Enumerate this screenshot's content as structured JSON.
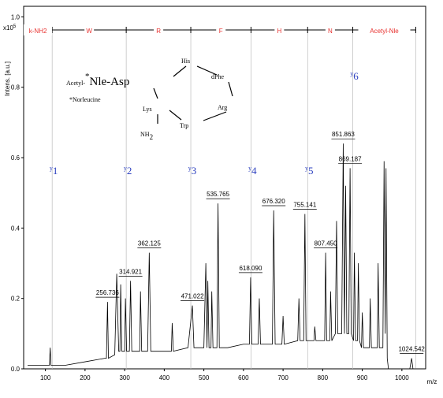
{
  "chart_data": {
    "type": "line",
    "y_axis_label": "Intens. [a.u.]",
    "y_multiplier": "x10",
    "y_multiplier_exp": "5",
    "x_axis_label": "m/z",
    "xlim": [
      45,
      1060
    ],
    "ylim": [
      0,
      1.03
    ],
    "xticks": [
      100,
      200,
      300,
      400,
      500,
      600,
      700,
      800,
      900,
      1000
    ],
    "yticks": [
      {
        "value": 0,
        "label": "0.0"
      },
      0.2,
      0.4,
      0.6,
      0.8,
      {
        "value": 1,
        "label": "1.0"
      }
    ],
    "x": [
      55,
      100,
      110,
      112,
      114,
      150,
      200,
      250,
      254,
      256.736,
      259,
      275,
      280,
      285,
      288,
      290,
      293,
      300,
      302,
      305,
      312,
      314.921,
      318,
      338,
      340,
      343,
      358,
      362.125,
      366,
      400,
      418,
      420,
      423,
      460,
      471.022,
      475,
      500,
      505,
      508,
      510,
      513,
      518,
      520,
      523,
      533,
      535.765,
      539,
      560,
      600,
      615,
      618.09,
      621,
      637,
      640,
      643,
      673,
      676.32,
      680,
      697,
      700,
      703,
      737,
      740,
      743,
      752,
      755.141,
      758,
      778,
      780,
      783,
      805,
      807.45,
      810,
      818,
      820,
      823,
      832,
      835,
      838,
      848,
      851.863,
      855,
      858,
      861,
      866,
      869.187,
      872,
      878,
      880,
      883,
      888,
      890,
      893,
      898,
      900,
      903,
      918,
      920,
      923,
      938,
      940,
      943,
      952,
      955,
      958,
      960,
      963,
      966,
      1020,
      1024.542,
      1028,
      1060
    ],
    "series": [
      {
        "color": "#000000",
        "values": [
          0.01,
          0.01,
          0.01,
          0.06,
          0.01,
          0.01,
          0.02,
          0.03,
          0.03,
          0.19,
          0.03,
          0.04,
          0.27,
          0.05,
          0.05,
          0.24,
          0.05,
          0.05,
          0.2,
          0.05,
          0.05,
          0.25,
          0.05,
          0.05,
          0.22,
          0.05,
          0.05,
          0.33,
          0.05,
          0.05,
          0.05,
          0.13,
          0.05,
          0.06,
          0.18,
          0.06,
          0.06,
          0.3,
          0.06,
          0.25,
          0.06,
          0.06,
          0.22,
          0.06,
          0.06,
          0.47,
          0.06,
          0.06,
          0.07,
          0.07,
          0.26,
          0.07,
          0.07,
          0.2,
          0.07,
          0.07,
          0.45,
          0.07,
          0.07,
          0.15,
          0.07,
          0.08,
          0.2,
          0.08,
          0.08,
          0.44,
          0.08,
          0.08,
          0.12,
          0.08,
          0.08,
          0.33,
          0.08,
          0.08,
          0.22,
          0.08,
          0.1,
          0.42,
          0.1,
          0.1,
          0.64,
          0.1,
          0.52,
          0.1,
          0.1,
          0.57,
          0.1,
          0.08,
          0.33,
          0.08,
          0.08,
          0.3,
          0.08,
          0.06,
          0.16,
          0.06,
          0.06,
          0.2,
          0.06,
          0.06,
          0.3,
          0.06,
          0.06,
          0.59,
          0.1,
          0.57,
          0.03,
          0,
          0,
          0.03,
          0,
          0
        ]
      }
    ],
    "peak_labels": [
      256.736,
      314.921,
      362.125,
      471.022,
      535.765,
      {
        "value": 618.09,
        "label": "618.090"
      },
      {
        "value": 676.32,
        "label": "676.320"
      },
      755.141,
      {
        "value": 807.45,
        "label": "807.450"
      },
      851.863,
      869.187,
      1024.542
    ],
    "ion_lines": [
      117,
      304,
      467,
      619,
      762,
      876,
      1035
    ],
    "ion_labels": [
      {
        "letter": "y",
        "index": "1"
      },
      {
        "letter": "y",
        "index": "2"
      },
      {
        "letter": "y",
        "index": "3"
      },
      {
        "letter": "y",
        "index": "4"
      },
      {
        "letter": "y",
        "index": "5"
      },
      {
        "letter": "y",
        "index": "6"
      }
    ],
    "sequence": [
      "k-NH2",
      "W",
      "R",
      "F",
      "H",
      "N",
      "Acetyl-Nle"
    ],
    "structure": {
      "his": "His",
      "dphe": "dPhe",
      "arg": "Arg",
      "trp": "Trp",
      "lys": "Lys",
      "nh": "NH",
      "nh_sub": "2",
      "acetyl": "Acetyl-",
      "star": "*",
      "nle": "Nle",
      "asp": "-Asp",
      "note_star": "*",
      "note": "Norleucine"
    }
  }
}
